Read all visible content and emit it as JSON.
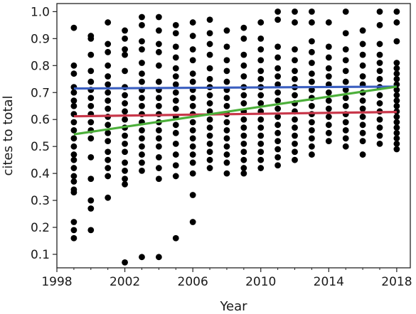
{
  "chart_data": {
    "type": "scatter",
    "xlabel": "Year",
    "ylabel": "cites to total",
    "xlim": [
      1998,
      2018.8
    ],
    "ylim": [
      0.05,
      1.03
    ],
    "x_ticks": [
      "1998",
      "2002",
      "2006",
      "2010",
      "2014",
      "2018"
    ],
    "x_tick_values": [
      1998,
      2002,
      2006,
      2010,
      2014,
      2018
    ],
    "y_ticks": [
      "0.1",
      "0.2",
      "0.3",
      "0.4",
      "0.5",
      "0.6",
      "0.7",
      "0.8",
      "0.9",
      "1.0"
    ],
    "y_tick_values": [
      0.1,
      0.2,
      0.3,
      0.4,
      0.5,
      0.6,
      0.7,
      0.8,
      0.9,
      1.0
    ],
    "grid": false,
    "point_color": "#000000",
    "points": [
      [
        1999,
        0.94
      ],
      [
        1999,
        0.8
      ],
      [
        1999,
        0.77
      ],
      [
        1999,
        0.72
      ],
      [
        1999,
        0.7
      ],
      [
        1999,
        0.67
      ],
      [
        1999,
        0.65
      ],
      [
        1999,
        0.62
      ],
      [
        1999,
        0.59
      ],
      [
        1999,
        0.56
      ],
      [
        1999,
        0.53
      ],
      [
        1999,
        0.5
      ],
      [
        1999,
        0.47
      ],
      [
        1999,
        0.45
      ],
      [
        1999,
        0.42
      ],
      [
        1999,
        0.39
      ],
      [
        1999,
        0.37
      ],
      [
        1999,
        0.34
      ],
      [
        1999,
        0.33
      ],
      [
        1999,
        0.22
      ],
      [
        1999,
        0.19
      ],
      [
        1999,
        0.16
      ],
      [
        2000,
        0.91
      ],
      [
        2000,
        0.9
      ],
      [
        2000,
        0.84
      ],
      [
        2000,
        0.78
      ],
      [
        2000,
        0.74
      ],
      [
        2000,
        0.71
      ],
      [
        2000,
        0.68
      ],
      [
        2000,
        0.65
      ],
      [
        2000,
        0.62
      ],
      [
        2000,
        0.59
      ],
      [
        2000,
        0.56
      ],
      [
        2000,
        0.53
      ],
      [
        2000,
        0.46
      ],
      [
        2000,
        0.38
      ],
      [
        2000,
        0.3
      ],
      [
        2000,
        0.27
      ],
      [
        2000,
        0.19
      ],
      [
        2001,
        0.96
      ],
      [
        2001,
        0.88
      ],
      [
        2001,
        0.85
      ],
      [
        2001,
        0.8
      ],
      [
        2001,
        0.76
      ],
      [
        2001,
        0.73
      ],
      [
        2001,
        0.7
      ],
      [
        2001,
        0.67
      ],
      [
        2001,
        0.64
      ],
      [
        2001,
        0.61
      ],
      [
        2001,
        0.58
      ],
      [
        2001,
        0.55
      ],
      [
        2001,
        0.52
      ],
      [
        2001,
        0.48
      ],
      [
        2001,
        0.45
      ],
      [
        2001,
        0.42
      ],
      [
        2001,
        0.39
      ],
      [
        2001,
        0.31
      ],
      [
        2002,
        0.93
      ],
      [
        2002,
        0.9
      ],
      [
        2002,
        0.86
      ],
      [
        2002,
        0.84
      ],
      [
        2002,
        0.78
      ],
      [
        2002,
        0.72
      ],
      [
        2002,
        0.69
      ],
      [
        2002,
        0.66
      ],
      [
        2002,
        0.63
      ],
      [
        2002,
        0.6
      ],
      [
        2002,
        0.57
      ],
      [
        2002,
        0.54
      ],
      [
        2002,
        0.51
      ],
      [
        2002,
        0.48
      ],
      [
        2002,
        0.44
      ],
      [
        2002,
        0.41
      ],
      [
        2002,
        0.38
      ],
      [
        2002,
        0.36
      ],
      [
        2002,
        0.07
      ],
      [
        2003,
        0.98
      ],
      [
        2003,
        0.95
      ],
      [
        2003,
        0.89
      ],
      [
        2003,
        0.86
      ],
      [
        2003,
        0.81
      ],
      [
        2003,
        0.77
      ],
      [
        2003,
        0.74
      ],
      [
        2003,
        0.71
      ],
      [
        2003,
        0.68
      ],
      [
        2003,
        0.65
      ],
      [
        2003,
        0.62
      ],
      [
        2003,
        0.59
      ],
      [
        2003,
        0.56
      ],
      [
        2003,
        0.53
      ],
      [
        2003,
        0.5
      ],
      [
        2003,
        0.47
      ],
      [
        2003,
        0.44
      ],
      [
        2003,
        0.41
      ],
      [
        2003,
        0.09
      ],
      [
        2004,
        0.98
      ],
      [
        2004,
        0.93
      ],
      [
        2004,
        0.88
      ],
      [
        2004,
        0.85
      ],
      [
        2004,
        0.8
      ],
      [
        2004,
        0.74
      ],
      [
        2004,
        0.71
      ],
      [
        2004,
        0.68
      ],
      [
        2004,
        0.65
      ],
      [
        2004,
        0.62
      ],
      [
        2004,
        0.59
      ],
      [
        2004,
        0.56
      ],
      [
        2004,
        0.53
      ],
      [
        2004,
        0.5
      ],
      [
        2004,
        0.46
      ],
      [
        2004,
        0.42
      ],
      [
        2004,
        0.38
      ],
      [
        2004,
        0.09
      ],
      [
        2005,
        0.95
      ],
      [
        2005,
        0.92
      ],
      [
        2005,
        0.87
      ],
      [
        2005,
        0.83
      ],
      [
        2005,
        0.79
      ],
      [
        2005,
        0.76
      ],
      [
        2005,
        0.73
      ],
      [
        2005,
        0.7
      ],
      [
        2005,
        0.67
      ],
      [
        2005,
        0.64
      ],
      [
        2005,
        0.61
      ],
      [
        2005,
        0.58
      ],
      [
        2005,
        0.55
      ],
      [
        2005,
        0.51
      ],
      [
        2005,
        0.47
      ],
      [
        2005,
        0.43
      ],
      [
        2005,
        0.39
      ],
      [
        2005,
        0.16
      ],
      [
        2006,
        0.96
      ],
      [
        2006,
        0.91
      ],
      [
        2006,
        0.86
      ],
      [
        2006,
        0.82
      ],
      [
        2006,
        0.77
      ],
      [
        2006,
        0.74
      ],
      [
        2006,
        0.71
      ],
      [
        2006,
        0.68
      ],
      [
        2006,
        0.65
      ],
      [
        2006,
        0.62
      ],
      [
        2006,
        0.59
      ],
      [
        2006,
        0.56
      ],
      [
        2006,
        0.53
      ],
      [
        2006,
        0.5
      ],
      [
        2006,
        0.47
      ],
      [
        2006,
        0.44
      ],
      [
        2006,
        0.4
      ],
      [
        2006,
        0.32
      ],
      [
        2006,
        0.22
      ],
      [
        2007,
        0.97
      ],
      [
        2007,
        0.92
      ],
      [
        2007,
        0.88
      ],
      [
        2007,
        0.84
      ],
      [
        2007,
        0.79
      ],
      [
        2007,
        0.75
      ],
      [
        2007,
        0.72
      ],
      [
        2007,
        0.69
      ],
      [
        2007,
        0.66
      ],
      [
        2007,
        0.63
      ],
      [
        2007,
        0.6
      ],
      [
        2007,
        0.57
      ],
      [
        2007,
        0.54
      ],
      [
        2007,
        0.51
      ],
      [
        2007,
        0.48
      ],
      [
        2007,
        0.45
      ],
      [
        2007,
        0.42
      ],
      [
        2008,
        0.93
      ],
      [
        2008,
        0.87
      ],
      [
        2008,
        0.82
      ],
      [
        2008,
        0.78
      ],
      [
        2008,
        0.74
      ],
      [
        2008,
        0.71
      ],
      [
        2008,
        0.68
      ],
      [
        2008,
        0.65
      ],
      [
        2008,
        0.62
      ],
      [
        2008,
        0.59
      ],
      [
        2008,
        0.56
      ],
      [
        2008,
        0.53
      ],
      [
        2008,
        0.5
      ],
      [
        2008,
        0.47
      ],
      [
        2008,
        0.44
      ],
      [
        2008,
        0.4
      ],
      [
        2009,
        0.94
      ],
      [
        2009,
        0.9
      ],
      [
        2009,
        0.84
      ],
      [
        2009,
        0.8
      ],
      [
        2009,
        0.76
      ],
      [
        2009,
        0.72
      ],
      [
        2009,
        0.69
      ],
      [
        2009,
        0.66
      ],
      [
        2009,
        0.63
      ],
      [
        2009,
        0.6
      ],
      [
        2009,
        0.57
      ],
      [
        2009,
        0.54
      ],
      [
        2009,
        0.51
      ],
      [
        2009,
        0.48
      ],
      [
        2009,
        0.45
      ],
      [
        2009,
        0.42
      ],
      [
        2009,
        0.4
      ],
      [
        2010,
        0.96
      ],
      [
        2010,
        0.9
      ],
      [
        2010,
        0.86
      ],
      [
        2010,
        0.82
      ],
      [
        2010,
        0.78
      ],
      [
        2010,
        0.75
      ],
      [
        2010,
        0.72
      ],
      [
        2010,
        0.69
      ],
      [
        2010,
        0.66
      ],
      [
        2010,
        0.63
      ],
      [
        2010,
        0.6
      ],
      [
        2010,
        0.57
      ],
      [
        2010,
        0.54
      ],
      [
        2010,
        0.51
      ],
      [
        2010,
        0.48
      ],
      [
        2010,
        0.45
      ],
      [
        2010,
        0.42
      ],
      [
        2011,
        1.0
      ],
      [
        2011,
        0.97
      ],
      [
        2011,
        0.87
      ],
      [
        2011,
        0.83
      ],
      [
        2011,
        0.79
      ],
      [
        2011,
        0.76
      ],
      [
        2011,
        0.73
      ],
      [
        2011,
        0.7
      ],
      [
        2011,
        0.67
      ],
      [
        2011,
        0.64
      ],
      [
        2011,
        0.61
      ],
      [
        2011,
        0.58
      ],
      [
        2011,
        0.55
      ],
      [
        2011,
        0.52
      ],
      [
        2011,
        0.49
      ],
      [
        2011,
        0.46
      ],
      [
        2011,
        0.43
      ],
      [
        2012,
        1.0
      ],
      [
        2012,
        0.96
      ],
      [
        2012,
        0.86
      ],
      [
        2012,
        0.82
      ],
      [
        2012,
        0.78
      ],
      [
        2012,
        0.75
      ],
      [
        2012,
        0.72
      ],
      [
        2012,
        0.69
      ],
      [
        2012,
        0.66
      ],
      [
        2012,
        0.63
      ],
      [
        2012,
        0.6
      ],
      [
        2012,
        0.57
      ],
      [
        2012,
        0.54
      ],
      [
        2012,
        0.51
      ],
      [
        2012,
        0.48
      ],
      [
        2012,
        0.45
      ],
      [
        2013,
        1.0
      ],
      [
        2013,
        0.96
      ],
      [
        2013,
        0.89
      ],
      [
        2013,
        0.85
      ],
      [
        2013,
        0.81
      ],
      [
        2013,
        0.77
      ],
      [
        2013,
        0.74
      ],
      [
        2013,
        0.71
      ],
      [
        2013,
        0.68
      ],
      [
        2013,
        0.65
      ],
      [
        2013,
        0.62
      ],
      [
        2013,
        0.59
      ],
      [
        2013,
        0.56
      ],
      [
        2013,
        0.53
      ],
      [
        2013,
        0.5
      ],
      [
        2013,
        0.47
      ],
      [
        2014,
        0.96
      ],
      [
        2014,
        0.87
      ],
      [
        2014,
        0.83
      ],
      [
        2014,
        0.79
      ],
      [
        2014,
        0.76
      ],
      [
        2014,
        0.73
      ],
      [
        2014,
        0.7
      ],
      [
        2014,
        0.67
      ],
      [
        2014,
        0.64
      ],
      [
        2014,
        0.61
      ],
      [
        2014,
        0.58
      ],
      [
        2014,
        0.55
      ],
      [
        2014,
        0.52
      ],
      [
        2015,
        1.0
      ],
      [
        2015,
        0.92
      ],
      [
        2015,
        0.86
      ],
      [
        2015,
        0.82
      ],
      [
        2015,
        0.78
      ],
      [
        2015,
        0.74
      ],
      [
        2015,
        0.71
      ],
      [
        2015,
        0.68
      ],
      [
        2015,
        0.65
      ],
      [
        2015,
        0.62
      ],
      [
        2015,
        0.59
      ],
      [
        2015,
        0.56
      ],
      [
        2015,
        0.53
      ],
      [
        2015,
        0.5
      ],
      [
        2016,
        0.93
      ],
      [
        2016,
        0.88
      ],
      [
        2016,
        0.84
      ],
      [
        2016,
        0.8
      ],
      [
        2016,
        0.76
      ],
      [
        2016,
        0.73
      ],
      [
        2016,
        0.7
      ],
      [
        2016,
        0.67
      ],
      [
        2016,
        0.64
      ],
      [
        2016,
        0.61
      ],
      [
        2016,
        0.58
      ],
      [
        2016,
        0.55
      ],
      [
        2016,
        0.52
      ],
      [
        2016,
        0.47
      ],
      [
        2017,
        1.0
      ],
      [
        2017,
        0.95
      ],
      [
        2017,
        0.88
      ],
      [
        2017,
        0.84
      ],
      [
        2017,
        0.81
      ],
      [
        2017,
        0.78
      ],
      [
        2017,
        0.75
      ],
      [
        2017,
        0.72
      ],
      [
        2017,
        0.69
      ],
      [
        2017,
        0.66
      ],
      [
        2017,
        0.63
      ],
      [
        2017,
        0.6
      ],
      [
        2017,
        0.57
      ],
      [
        2017,
        0.54
      ],
      [
        2017,
        0.51
      ],
      [
        2018,
        1.0
      ],
      [
        2018,
        0.96
      ],
      [
        2018,
        0.89
      ],
      [
        2018,
        0.81
      ],
      [
        2018,
        0.79
      ],
      [
        2018,
        0.77
      ],
      [
        2018,
        0.75
      ],
      [
        2018,
        0.73
      ],
      [
        2018,
        0.71
      ],
      [
        2018,
        0.69
      ],
      [
        2018,
        0.67
      ],
      [
        2018,
        0.65
      ],
      [
        2018,
        0.63
      ],
      [
        2018,
        0.61
      ],
      [
        2018,
        0.59
      ],
      [
        2018,
        0.57
      ],
      [
        2018,
        0.55
      ],
      [
        2018,
        0.53
      ],
      [
        2018,
        0.51
      ],
      [
        2018,
        0.49
      ]
    ],
    "fit_lines": [
      {
        "color": "#3b5fc0",
        "x": [
          1999,
          2018
        ],
        "y": [
          0.715,
          0.722
        ]
      },
      {
        "color": "#c8374a",
        "x": [
          1999,
          2018
        ],
        "y": [
          0.612,
          0.628
        ]
      },
      {
        "color": "#4caf3a",
        "x": [
          1999,
          2018
        ],
        "y": [
          0.545,
          0.722
        ]
      }
    ]
  }
}
